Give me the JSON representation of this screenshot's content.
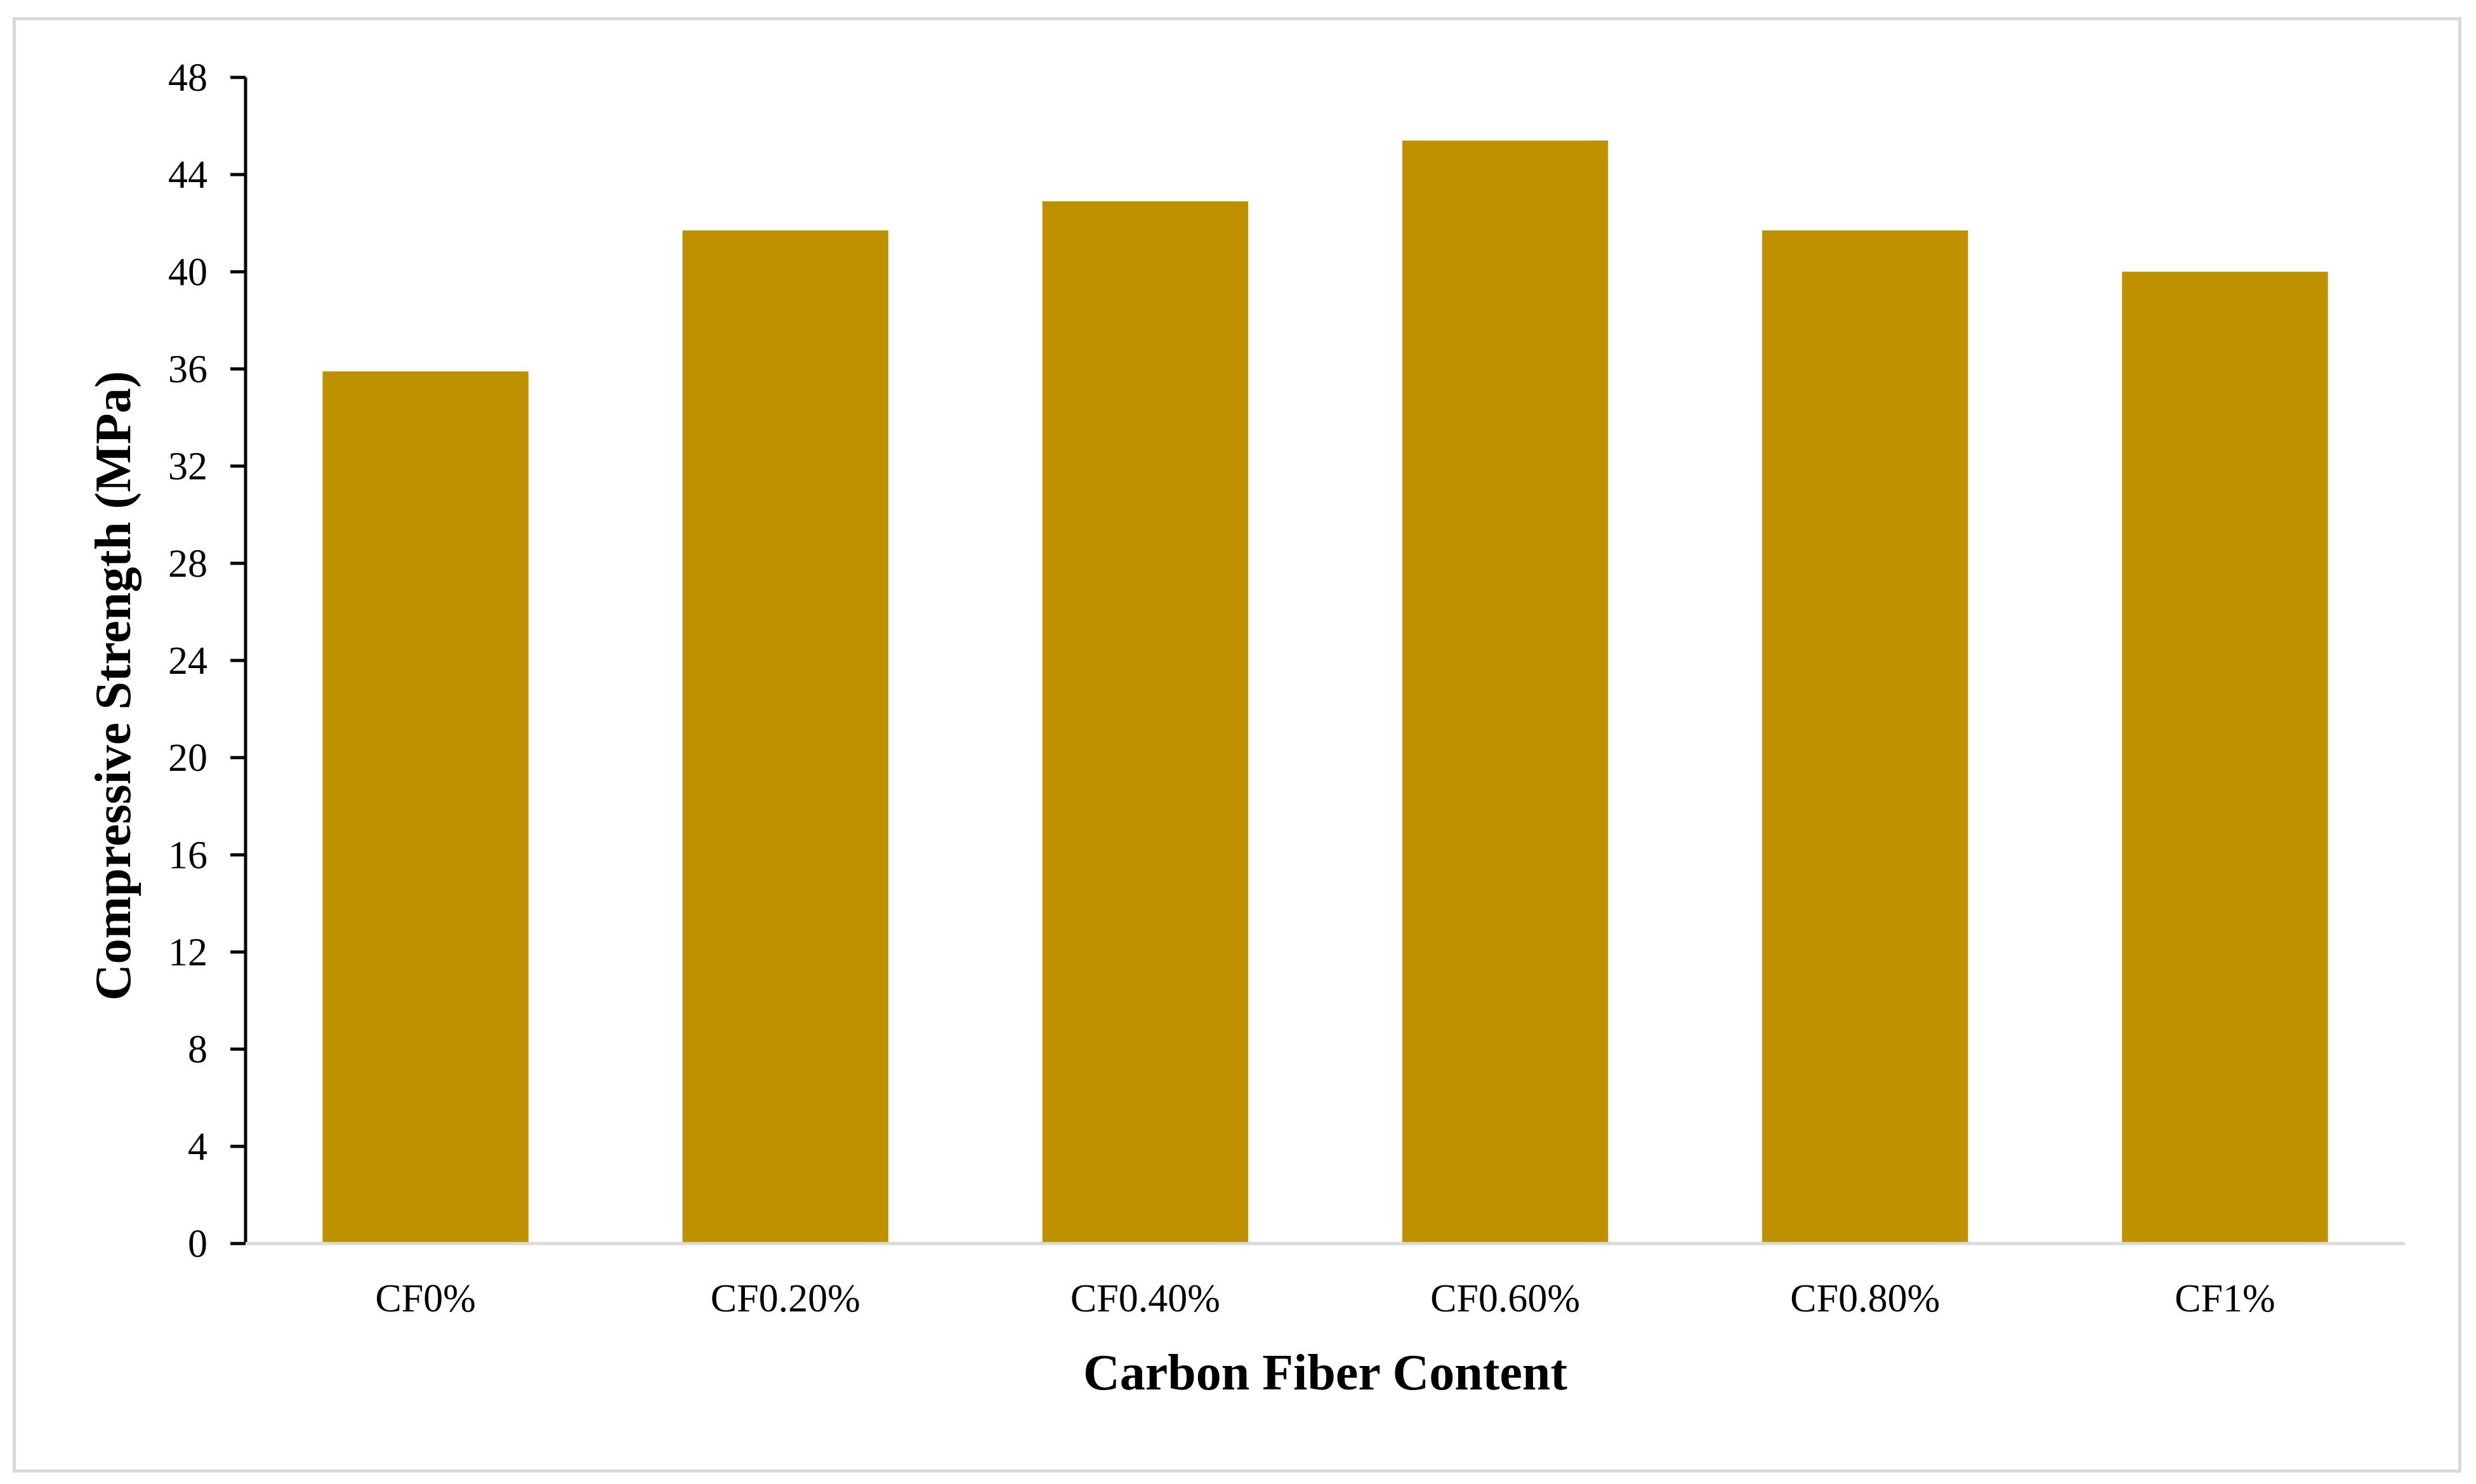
{
  "chart_data": {
    "type": "bar",
    "title": "",
    "xlabel": "Carbon Fiber Content",
    "ylabel": "Compressive Strength (MPa)",
    "categories": [
      "CF0%",
      "CF0.20%",
      "CF0.40%",
      "CF0.60%",
      "CF0.80%",
      "CF1%"
    ],
    "values": [
      35.9,
      41.7,
      42.9,
      45.4,
      41.7,
      40.0
    ],
    "ylim": [
      0,
      48
    ],
    "yticks": [
      "0",
      "4",
      "8",
      "12",
      "16",
      "20",
      "24",
      "28",
      "32",
      "36",
      "40",
      "44",
      "48"
    ],
    "grid": false,
    "legend": "none",
    "bar_color": "#bf9000",
    "axis_color": "#000000",
    "frame_color": "#d9d9d9"
  }
}
